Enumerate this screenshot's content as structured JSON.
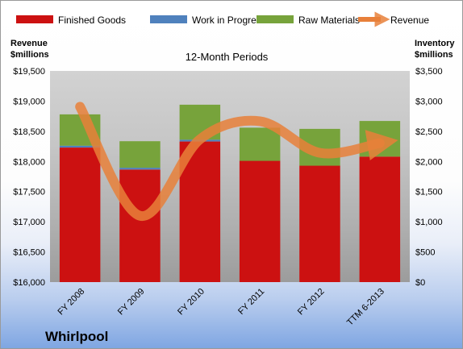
{
  "chart_data": {
    "type": "bar",
    "title": "12-Month Periods",
    "company": "Whirlpool",
    "categories": [
      "FY 2008",
      "FY 2009",
      "FY 2010",
      "FY 2011",
      "FY 2012",
      "TTM 6-2013"
    ],
    "stacked": true,
    "series": [
      {
        "name": "Finished Goods",
        "color": "#cc1111",
        "axis": "right",
        "values": [
          2230,
          1865,
          2330,
          2010,
          1930,
          2080
        ]
      },
      {
        "name": "Work in Progress",
        "color": "#4f81bd",
        "axis": "right",
        "values": [
          30,
          30,
          30,
          0,
          0,
          0
        ]
      },
      {
        "name": "Raw Materials",
        "color": "#77a33b",
        "axis": "right",
        "values": [
          520,
          440,
          580,
          550,
          610,
          590
        ]
      },
      {
        "name": "Revenue",
        "color": "#e8803a",
        "axis": "left",
        "type": "line",
        "values": [
          18907,
          17099,
          18366,
          18666,
          18143,
          18303
        ]
      }
    ],
    "y_left": {
      "label_line1": "Revenue",
      "label_line2": "$millions",
      "lim": [
        16000,
        19500
      ],
      "ticks": [
        "$16,000",
        "$16,500",
        "$17,000",
        "$17,500",
        "$18,000",
        "$18,500",
        "$19,000",
        "$19,500"
      ]
    },
    "y_right": {
      "label_line1": "Inventory",
      "label_line2": "$millions",
      "lim": [
        0,
        3500
      ],
      "ticks": [
        "$0",
        "$500",
        "$1,000",
        "$1,500",
        "$2,000",
        "$2,500",
        "$3,000",
        "$3,500"
      ]
    },
    "legend": "top",
    "grid": false
  }
}
